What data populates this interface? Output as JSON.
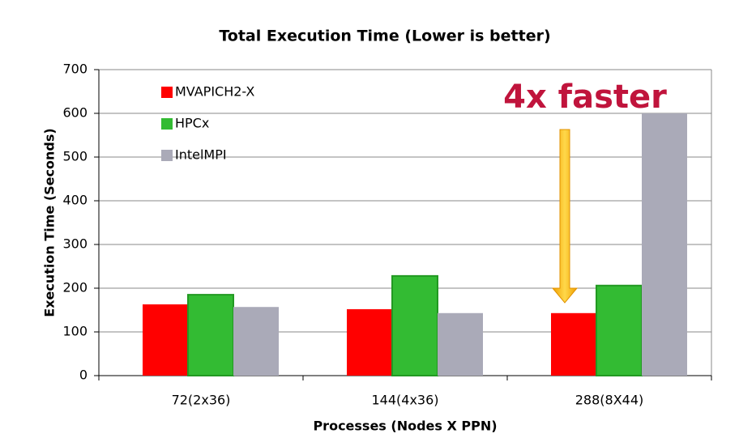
{
  "chart_data": {
    "type": "bar",
    "title": "Total Execution Time (Lower is better)",
    "x_label": "Processes (Nodes X PPN)",
    "y_label": "Execution Time (Seconds)",
    "annotation": "4x faster",
    "categories": [
      "72(2x36)",
      "144(4x36)",
      "288(8X44)"
    ],
    "series": [
      {
        "name": "MVAPICH2-X",
        "color": "#ff0000",
        "values": [
          163,
          152,
          143
        ]
      },
      {
        "name": "HPCx",
        "color": "#33bb33",
        "values": [
          185,
          228,
          206
        ]
      },
      {
        "name": "IntelMPI",
        "color": "#aaaab8",
        "values": [
          157,
          143,
          600
        ]
      }
    ],
    "ylim": [
      0,
      700
    ],
    "yticks": [
      0,
      100,
      200,
      300,
      400,
      500,
      600,
      700
    ],
    "grid": true
  }
}
